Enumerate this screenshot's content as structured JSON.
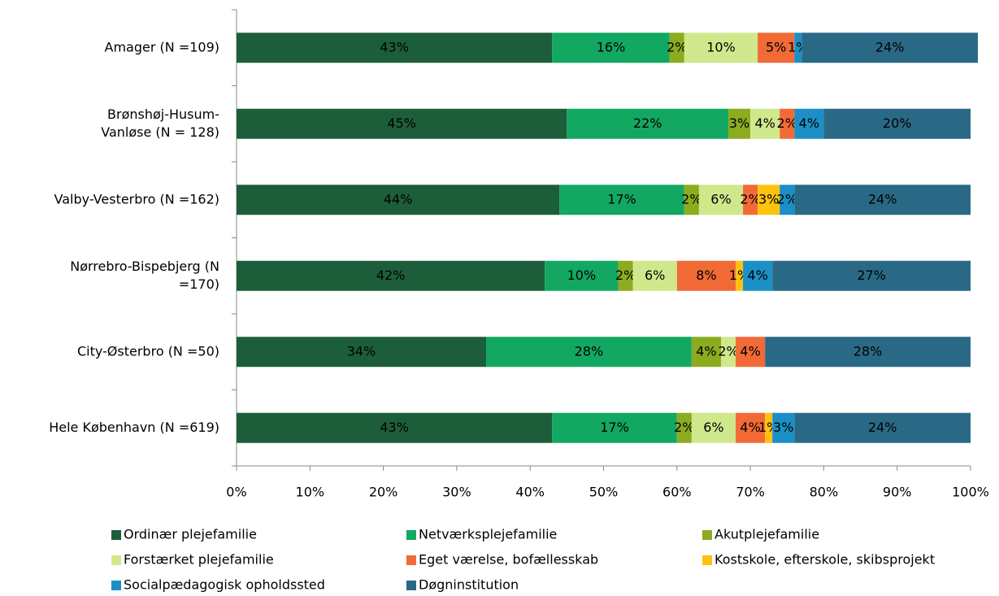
{
  "chart_data": {
    "type": "stacked-bar-horizontal",
    "categories": [
      [
        "Amager (N =109)"
      ],
      [
        "Brønshøj-Husum-",
        "Vanløse (N = 128)"
      ],
      [
        "Valby-Vesterbro (N =162)"
      ],
      [
        "Nørrebro-Bispebjerg (N",
        "=170)"
      ],
      [
        "City-Østerbro (N =50)"
      ],
      [
        "Hele København (N =619)"
      ]
    ],
    "series": [
      {
        "name": "Ordinær plejefamilie",
        "color": "#1d5e3a",
        "values": [
          43,
          45,
          44,
          42,
          34,
          43
        ],
        "value_labels": [
          "43%",
          "45%",
          "44%",
          "42%",
          "34%",
          "43%"
        ]
      },
      {
        "name": "Netværksplejefamilie",
        "color": "#12a862",
        "values": [
          16,
          22,
          17,
          10,
          28,
          17
        ],
        "value_labels": [
          "16%",
          "22%",
          "17%",
          "10%",
          "28%",
          "17%"
        ]
      },
      {
        "name": "Akutplejefamilie",
        "color": "#8dab1e",
        "values": [
          2,
          3,
          2,
          2,
          4,
          2
        ],
        "value_labels": [
          "2%",
          "3%",
          "2%",
          "2%",
          "4%",
          "2%"
        ]
      },
      {
        "name": "Forstærket plejefamilie",
        "color": "#cfe88c",
        "values": [
          10,
          4,
          6,
          6,
          2,
          6
        ],
        "value_labels": [
          "10%",
          "4%",
          "6%",
          "6%",
          "2%",
          "6%"
        ]
      },
      {
        "name": "Eget værelse, bofællesskab",
        "color": "#f26a36",
        "values": [
          5,
          2,
          2,
          8,
          4,
          4
        ],
        "value_labels": [
          "5%",
          "2%",
          "2%",
          "8%",
          "4%",
          "4%"
        ]
      },
      {
        "name": "Kostskole, efterskole, skibsprojekt",
        "color": "#ffc20e",
        "values": [
          null,
          null,
          3,
          1,
          null,
          1
        ],
        "value_labels": [
          null,
          null,
          "3%",
          "1%",
          null,
          "1%"
        ]
      },
      {
        "name": "Socialpædagogisk opholdssted",
        "color": "#1b8fc6",
        "values": [
          1,
          4,
          2,
          4,
          null,
          3
        ],
        "value_labels": [
          "1%",
          "4%",
          "2%",
          "4%",
          null,
          "3%"
        ]
      },
      {
        "name": "Døgninstitution",
        "color": "#2a6986",
        "values": [
          24,
          20,
          24,
          27,
          28,
          24
        ],
        "value_labels": [
          "24%",
          "20%",
          "24%",
          "27%",
          "28%",
          "24%"
        ]
      }
    ],
    "xlim": [
      0,
      100
    ],
    "xticks": [
      {
        "value": 0,
        "label": "0%"
      },
      {
        "value": 10,
        "label": "10%"
      },
      {
        "value": 20,
        "label": "20%"
      },
      {
        "value": 30,
        "label": "30%"
      },
      {
        "value": 40,
        "label": "40%"
      },
      {
        "value": 50,
        "label": "50%"
      },
      {
        "value": 60,
        "label": "60%"
      },
      {
        "value": 70,
        "label": "70%"
      },
      {
        "value": 80,
        "label": "80%"
      },
      {
        "value": 90,
        "label": "90%"
      },
      {
        "value": 100,
        "label": "100%"
      }
    ],
    "legend": "bottom"
  }
}
